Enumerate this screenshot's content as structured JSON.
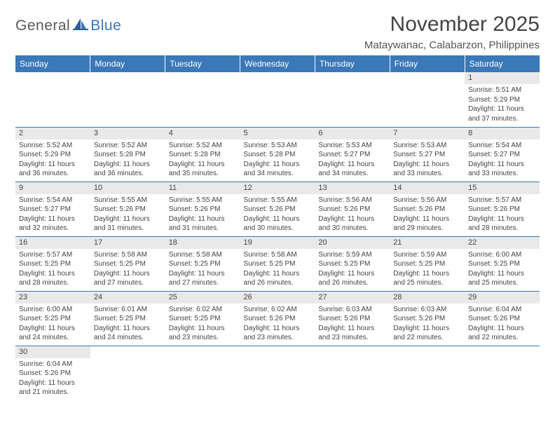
{
  "brand": {
    "part1": "General",
    "part2": "Blue"
  },
  "title": "November 2025",
  "location": "Mataywanac, Calabarzon, Philippines",
  "colors": {
    "header_bg": "#3a78b8",
    "header_text": "#ffffff",
    "daynum_bg": "#e9e9e9",
    "row_border": "#3a78b8",
    "body_text": "#444444",
    "logo_gray": "#58595b",
    "logo_blue": "#3a78b8"
  },
  "weekdays": [
    "Sunday",
    "Monday",
    "Tuesday",
    "Wednesday",
    "Thursday",
    "Friday",
    "Saturday"
  ],
  "first_weekday_index": 6,
  "days": [
    {
      "n": 1,
      "sr": "5:51 AM",
      "ss": "5:29 PM",
      "dl": "11 hours and 37 minutes."
    },
    {
      "n": 2,
      "sr": "5:52 AM",
      "ss": "5:29 PM",
      "dl": "11 hours and 36 minutes."
    },
    {
      "n": 3,
      "sr": "5:52 AM",
      "ss": "5:28 PM",
      "dl": "11 hours and 36 minutes."
    },
    {
      "n": 4,
      "sr": "5:52 AM",
      "ss": "5:28 PM",
      "dl": "11 hours and 35 minutes."
    },
    {
      "n": 5,
      "sr": "5:53 AM",
      "ss": "5:28 PM",
      "dl": "11 hours and 34 minutes."
    },
    {
      "n": 6,
      "sr": "5:53 AM",
      "ss": "5:27 PM",
      "dl": "11 hours and 34 minutes."
    },
    {
      "n": 7,
      "sr": "5:53 AM",
      "ss": "5:27 PM",
      "dl": "11 hours and 33 minutes."
    },
    {
      "n": 8,
      "sr": "5:54 AM",
      "ss": "5:27 PM",
      "dl": "11 hours and 33 minutes."
    },
    {
      "n": 9,
      "sr": "5:54 AM",
      "ss": "5:27 PM",
      "dl": "11 hours and 32 minutes."
    },
    {
      "n": 10,
      "sr": "5:55 AM",
      "ss": "5:26 PM",
      "dl": "11 hours and 31 minutes."
    },
    {
      "n": 11,
      "sr": "5:55 AM",
      "ss": "5:26 PM",
      "dl": "11 hours and 31 minutes."
    },
    {
      "n": 12,
      "sr": "5:55 AM",
      "ss": "5:26 PM",
      "dl": "11 hours and 30 minutes."
    },
    {
      "n": 13,
      "sr": "5:56 AM",
      "ss": "5:26 PM",
      "dl": "11 hours and 30 minutes."
    },
    {
      "n": 14,
      "sr": "5:56 AM",
      "ss": "5:26 PM",
      "dl": "11 hours and 29 minutes."
    },
    {
      "n": 15,
      "sr": "5:57 AM",
      "ss": "5:26 PM",
      "dl": "11 hours and 28 minutes."
    },
    {
      "n": 16,
      "sr": "5:57 AM",
      "ss": "5:25 PM",
      "dl": "11 hours and 28 minutes."
    },
    {
      "n": 17,
      "sr": "5:58 AM",
      "ss": "5:25 PM",
      "dl": "11 hours and 27 minutes."
    },
    {
      "n": 18,
      "sr": "5:58 AM",
      "ss": "5:25 PM",
      "dl": "11 hours and 27 minutes."
    },
    {
      "n": 19,
      "sr": "5:58 AM",
      "ss": "5:25 PM",
      "dl": "11 hours and 26 minutes."
    },
    {
      "n": 20,
      "sr": "5:59 AM",
      "ss": "5:25 PM",
      "dl": "11 hours and 26 minutes."
    },
    {
      "n": 21,
      "sr": "5:59 AM",
      "ss": "5:25 PM",
      "dl": "11 hours and 25 minutes."
    },
    {
      "n": 22,
      "sr": "6:00 AM",
      "ss": "5:25 PM",
      "dl": "11 hours and 25 minutes."
    },
    {
      "n": 23,
      "sr": "6:00 AM",
      "ss": "5:25 PM",
      "dl": "11 hours and 24 minutes."
    },
    {
      "n": 24,
      "sr": "6:01 AM",
      "ss": "5:25 PM",
      "dl": "11 hours and 24 minutes."
    },
    {
      "n": 25,
      "sr": "6:02 AM",
      "ss": "5:25 PM",
      "dl": "11 hours and 23 minutes."
    },
    {
      "n": 26,
      "sr": "6:02 AM",
      "ss": "5:26 PM",
      "dl": "11 hours and 23 minutes."
    },
    {
      "n": 27,
      "sr": "6:03 AM",
      "ss": "5:26 PM",
      "dl": "11 hours and 23 minutes."
    },
    {
      "n": 28,
      "sr": "6:03 AM",
      "ss": "5:26 PM",
      "dl": "11 hours and 22 minutes."
    },
    {
      "n": 29,
      "sr": "6:04 AM",
      "ss": "5:26 PM",
      "dl": "11 hours and 22 minutes."
    },
    {
      "n": 30,
      "sr": "6:04 AM",
      "ss": "5:26 PM",
      "dl": "11 hours and 21 minutes."
    }
  ],
  "labels": {
    "sunrise": "Sunrise:",
    "sunset": "Sunset:",
    "daylight": "Daylight:"
  }
}
